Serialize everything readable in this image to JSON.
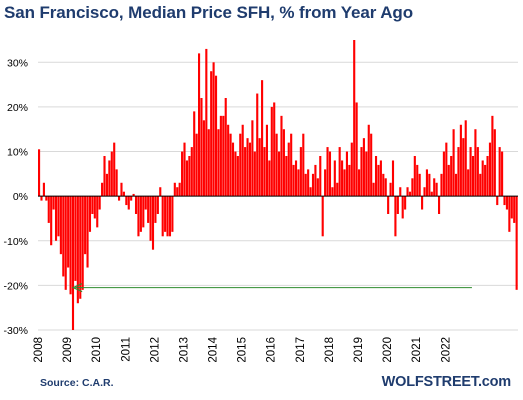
{
  "title": "San Francisco, Median Price SFH, % from Year Ago",
  "source": "Source: C.A.R.",
  "brand": "WOLFSTREET.com",
  "colors": {
    "bar": "#ff0000",
    "arrow": "#2e8b2e",
    "title": "#1f3c6e",
    "grid": "#d9d9d9"
  },
  "chart_data": {
    "type": "bar",
    "title": "San Francisco, Median Price SFH, % from Year Ago",
    "xlabel": "",
    "ylabel": "",
    "ylim": [
      -30,
      35
    ],
    "yticks": [
      -30,
      -20,
      -10,
      0,
      10,
      20,
      30
    ],
    "ytick_labels": [
      "-30%",
      "-20%",
      "-10%",
      "0%",
      "10%",
      "20%",
      "30%"
    ],
    "xticks": [
      "2008",
      "2009",
      "2010",
      "2011",
      "2012",
      "2013",
      "2014",
      "2015",
      "2016",
      "2017",
      "2018",
      "2019",
      "2020",
      "2021",
      "2022"
    ],
    "x_start": "2008-01",
    "x_step": "month",
    "grid": "horizontal",
    "annotation": {
      "type": "arrow",
      "y": -20.5,
      "from": "2022-12",
      "to": "2009-03"
    },
    "series": [
      {
        "values": [
          10.5,
          -1,
          3,
          -1,
          -6,
          -11,
          -3,
          -10,
          -9,
          -13,
          -18,
          -21,
          -16,
          -22,
          -30,
          -19,
          -24,
          -23,
          -21,
          -13,
          -16,
          -8,
          -4,
          -5,
          -7,
          -3,
          3,
          9,
          5,
          8,
          10,
          12,
          6,
          -1,
          3,
          1,
          -2,
          -3,
          -1,
          0.5,
          -4,
          -9,
          -8,
          -7,
          -3,
          -6,
          -10,
          -12,
          -6,
          -4,
          2,
          -9,
          -8,
          -9,
          -9,
          -8,
          3,
          2,
          3,
          10,
          12,
          8,
          9,
          11,
          19,
          14,
          32,
          22,
          17,
          33,
          15,
          28,
          30,
          27,
          15,
          18,
          18,
          22,
          16,
          14,
          12,
          10,
          9,
          14,
          16,
          11,
          13,
          12,
          17,
          10,
          23,
          13,
          26,
          11,
          16,
          8,
          20,
          21,
          14,
          10,
          18,
          15,
          9,
          12,
          14,
          7,
          8,
          6,
          11,
          14,
          5,
          6,
          2,
          5,
          7,
          4,
          9,
          -9,
          6,
          11,
          10,
          2,
          8,
          3,
          11,
          8,
          6,
          10,
          7,
          12,
          35,
          21,
          6,
          11,
          13,
          10,
          16,
          14,
          3,
          9,
          7,
          8,
          5,
          4,
          -4,
          3,
          8,
          -9,
          -4,
          2,
          -5,
          -3,
          2,
          1,
          4,
          9,
          7,
          5,
          -3,
          2,
          6,
          5,
          1,
          4,
          3,
          -4,
          5,
          10,
          12,
          7,
          9,
          15,
          5,
          11,
          16,
          13,
          17,
          6,
          11,
          9,
          15,
          11,
          5,
          8,
          7,
          9,
          12,
          18,
          15,
          -2,
          11,
          10,
          -2,
          -3,
          -8,
          -5,
          -6,
          -21
        ]
      }
    ]
  }
}
